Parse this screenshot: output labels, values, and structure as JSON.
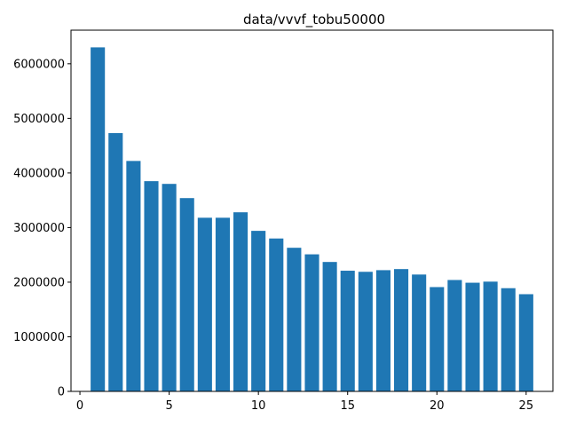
{
  "chart_data": {
    "type": "bar",
    "title": "data/vvvf_tobu50000",
    "xlabel": "",
    "ylabel": "",
    "x": [
      1,
      2,
      3,
      4,
      5,
      6,
      7,
      8,
      9,
      10,
      11,
      12,
      13,
      14,
      15,
      16,
      17,
      18,
      19,
      20,
      21,
      22,
      23,
      24,
      25
    ],
    "values": [
      6300000,
      4730000,
      4220000,
      3850000,
      3800000,
      3540000,
      3180000,
      3180000,
      3280000,
      2940000,
      2800000,
      2630000,
      2510000,
      2370000,
      2210000,
      2190000,
      2220000,
      2240000,
      2140000,
      1910000,
      2040000,
      1990000,
      2010000,
      1890000,
      1780000
    ],
    "xlim": [
      -0.5,
      26.5
    ],
    "ylim": [
      0,
      6615000
    ],
    "xticks": [
      0,
      5,
      10,
      15,
      20,
      25
    ],
    "xtick_labels": [
      "0",
      "5",
      "10",
      "15",
      "20",
      "25"
    ],
    "yticks": [
      0,
      1000000,
      2000000,
      3000000,
      4000000,
      5000000,
      6000000
    ],
    "ytick_labels": [
      "0",
      "1000000",
      "2000000",
      "3000000",
      "4000000",
      "5000000",
      "6000000"
    ],
    "bar_color": "#1f77b4",
    "grid": false,
    "legend": "none"
  }
}
